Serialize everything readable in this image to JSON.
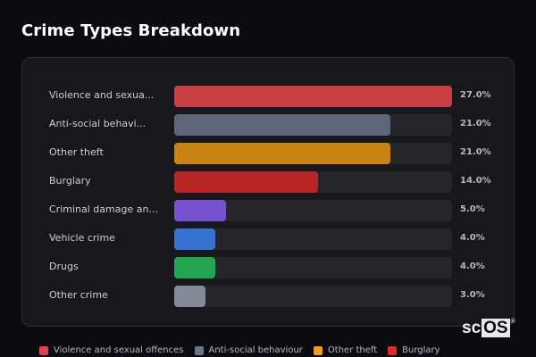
{
  "title": "Crime Types Breakdown",
  "chart_data": {
    "type": "bar",
    "orientation": "horizontal",
    "title": "Crime Types Breakdown",
    "xlabel": "",
    "ylabel": "",
    "xlim": [
      0,
      27
    ],
    "grid": false,
    "legend_position": "bottom",
    "categories": [
      "Violence and sexual offences",
      "Anti-social behaviour",
      "Other theft",
      "Burglary",
      "Criminal damage and arson",
      "Vehicle crime",
      "Drugs",
      "Other crime"
    ],
    "display_labels": [
      "Violence and sexua...",
      "Anti-social behavi...",
      "Other theft",
      "Burglary",
      "Criminal damage an...",
      "Vehicle crime",
      "Drugs",
      "Other crime"
    ],
    "values": [
      27.0,
      21.0,
      21.0,
      14.0,
      5.0,
      4.0,
      4.0,
      3.0
    ],
    "value_labels": [
      "27.0%",
      "21.0%",
      "21.0%",
      "14.0%",
      "5.0%",
      "4.0%",
      "4.0%",
      "3.0%"
    ],
    "colors": [
      "#c93e41",
      "#5b6678",
      "#c98414",
      "#b82628",
      "#7752cf",
      "#3473d2",
      "#23a552",
      "#838b9a"
    ],
    "legend": [
      {
        "label": "Violence and sexual offences",
        "color": "#e2434a"
      },
      {
        "label": "Anti-social behaviour",
        "color": "#6b7688"
      },
      {
        "label": "Other theft",
        "color": "#f29d12"
      },
      {
        "label": "Burglary",
        "color": "#dc2b2e"
      }
    ]
  },
  "watermark": {
    "prefix": "sc",
    "boxed": "OS",
    "mark": "®"
  }
}
